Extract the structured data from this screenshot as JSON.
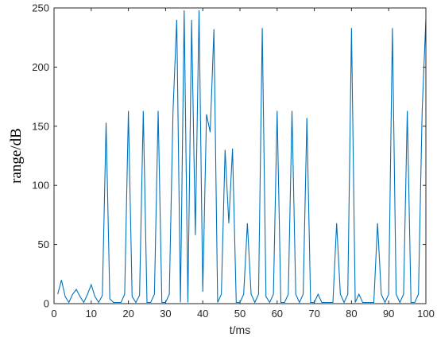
{
  "chart_data": {
    "type": "line",
    "xlabel": "t/ms",
    "ylabel": "range/dB",
    "xlim": [
      0,
      100
    ],
    "ylim": [
      0,
      250
    ],
    "xticks": [
      0,
      10,
      20,
      30,
      40,
      50,
      60,
      70,
      80,
      90,
      100
    ],
    "yticks": [
      0,
      50,
      100,
      150,
      200,
      250
    ],
    "grid": false,
    "series": [
      {
        "color": "#0072BD",
        "x": [
          1,
          2,
          3,
          4,
          5,
          6,
          7,
          8,
          9,
          10,
          11,
          12,
          13,
          14,
          15,
          16,
          17,
          18,
          19,
          20,
          21,
          22,
          23,
          24,
          25,
          26,
          27,
          28,
          29,
          30,
          31,
          32,
          33,
          34,
          35,
          36,
          37,
          38,
          39,
          40,
          41,
          42,
          43,
          44,
          45,
          46,
          47,
          48,
          49,
          50,
          51,
          52,
          53,
          54,
          55,
          56,
          57,
          58,
          59,
          60,
          61,
          62,
          63,
          64,
          65,
          66,
          67,
          68,
          69,
          70,
          71,
          72,
          73,
          74,
          75,
          76,
          77,
          78,
          79,
          80,
          81,
          82,
          83,
          84,
          85,
          86,
          87,
          88,
          89,
          90,
          91,
          92,
          93,
          94,
          95,
          96,
          97,
          98,
          99,
          100
        ],
        "y": [
          8,
          20,
          6,
          1,
          8,
          12,
          6,
          1,
          8,
          16,
          6,
          1,
          7,
          153,
          4,
          1,
          1,
          1,
          8,
          163,
          6,
          1,
          7,
          163,
          1,
          1,
          8,
          163,
          1,
          1,
          8,
          163,
          240,
          1,
          248,
          1,
          240,
          58,
          248,
          10,
          160,
          145,
          232,
          1,
          8,
          130,
          68,
          131,
          1,
          1,
          8,
          68,
          8,
          1,
          8,
          233,
          6,
          1,
          8,
          163,
          1,
          1,
          8,
          163,
          8,
          1,
          8,
          157,
          1,
          1,
          8,
          1,
          1,
          1,
          1,
          68,
          8,
          1,
          8,
          233,
          1,
          8,
          1,
          1,
          1,
          1,
          68,
          8,
          1,
          8,
          233,
          8,
          1,
          8,
          163,
          1,
          1,
          8,
          163,
          241
        ]
      }
    ]
  }
}
